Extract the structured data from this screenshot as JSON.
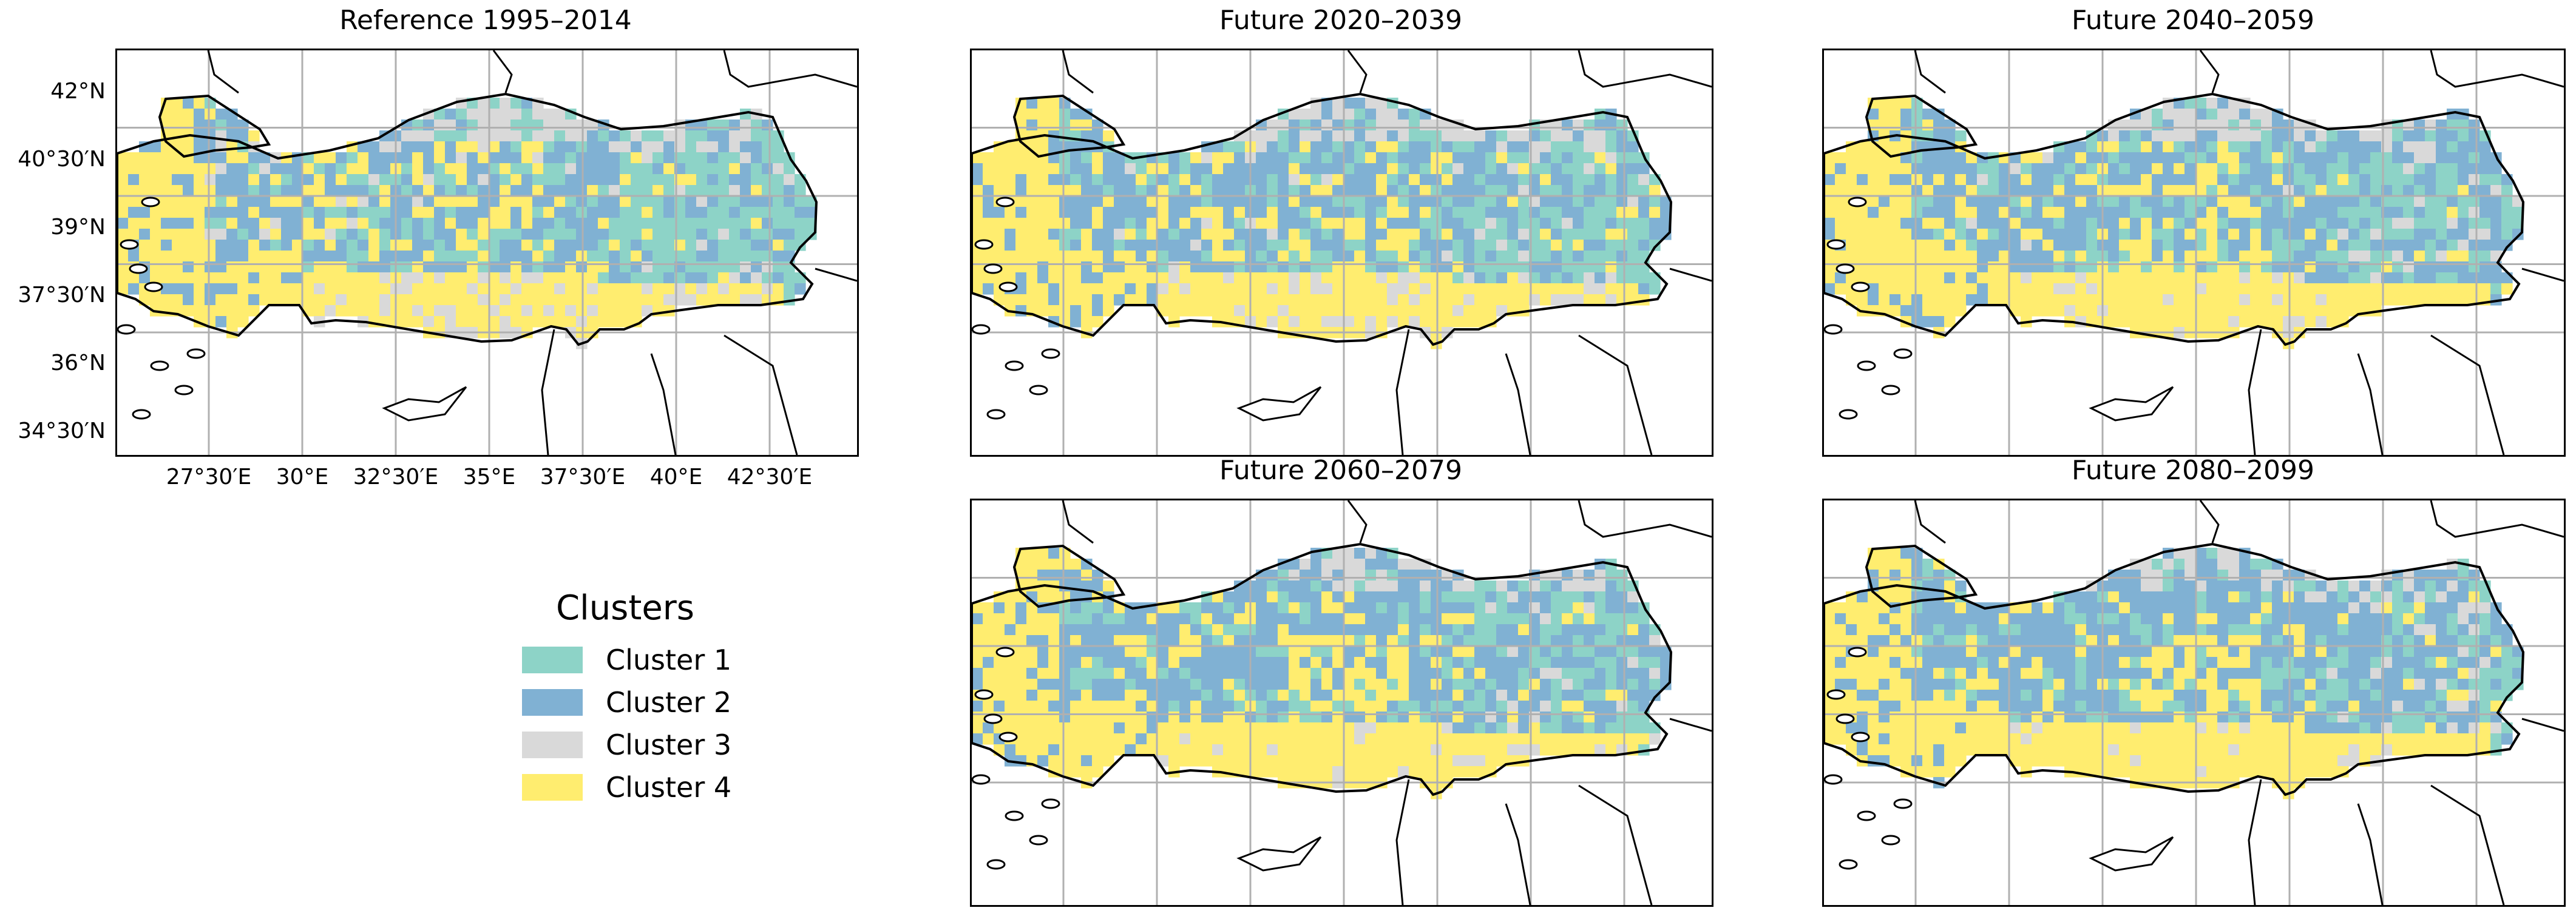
{
  "panels": [
    {
      "title": "Reference 1995–2014",
      "variant": 0
    },
    {
      "title": "Future 2020–2039",
      "variant": 1
    },
    {
      "title": "Future 2040–2059",
      "variant": 2
    },
    {
      "title": "Future 2060–2079",
      "variant": 3
    },
    {
      "title": "Future 2080–2099",
      "variant": 4
    }
  ],
  "lat_labels": [
    "42°N",
    "40°30′N",
    "39°N",
    "37°30′N",
    "36°N",
    "34°30′N"
  ],
  "lon_labels": [
    "27°30′E",
    "30°E",
    "32°30′E",
    "35°E",
    "37°30′E",
    "40°E",
    "42°30′E"
  ],
  "legend": {
    "title": "Clusters",
    "items": [
      {
        "label": "Cluster 1",
        "color": "#8dd3c7"
      },
      {
        "label": "Cluster 2",
        "color": "#80b1d3"
      },
      {
        "label": "Cluster 3",
        "color": "#d9d9d9"
      },
      {
        "label": "Cluster 4",
        "color": "#ffed6f"
      }
    ]
  }
}
